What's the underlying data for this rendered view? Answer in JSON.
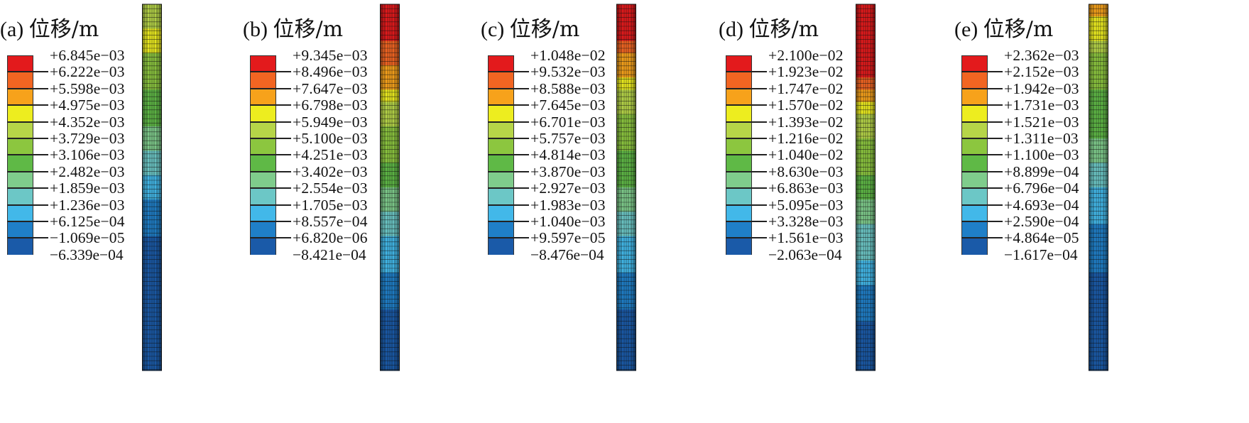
{
  "colors": [
    "#e31a1c",
    "#f26522",
    "#f7a21b",
    "#eded1f",
    "#b6d548",
    "#8cc63f",
    "#5fb946",
    "#7fcc8c",
    "#6cc7c6",
    "#42b8e9",
    "#1f7fc8",
    "#1a5aa8"
  ],
  "panels": [
    {
      "label": "(a)",
      "title_text": "位移",
      "unit": "/m",
      "legend": [
        "+6.845e−03",
        "+6.222e−03",
        "+5.598e−03",
        "+4.975e−03",
        "+4.352e−03",
        "+3.729e−03",
        "+3.106e−03",
        "+2.482e−03",
        "+1.859e−03",
        "+1.236e−03",
        "+6.125e−04",
        "−1.069e−05",
        "−6.339e−04"
      ],
      "pile_profile": [
        4,
        4,
        3,
        3,
        5,
        5,
        5,
        6,
        6,
        6,
        7,
        7,
        8,
        8,
        9,
        9,
        10,
        10,
        10,
        11,
        11,
        11,
        11,
        11,
        11,
        11,
        11,
        11,
        11,
        11
      ]
    },
    {
      "label": "(b)",
      "title_text": "位移",
      "unit": "/m",
      "legend": [
        "+9.345e−03",
        "+8.496e−03",
        "+7.647e−03",
        "+6.798e−03",
        "+5.949e−03",
        "+5.100e−03",
        "+4.251e−03",
        "+3.402e−03",
        "+2.554e−03",
        "+1.705e−03",
        "+8.557e−04",
        "+6.820e−06",
        "−8.421e−04"
      ],
      "pile_profile": [
        0,
        0,
        0,
        1,
        1,
        2,
        2,
        3,
        4,
        4,
        5,
        5,
        5,
        6,
        6,
        7,
        7,
        8,
        8,
        9,
        9,
        9,
        10,
        10,
        10,
        11,
        11,
        11,
        11,
        11
      ]
    },
    {
      "label": "(c)",
      "title_text": "位移",
      "unit": "/m",
      "legend": [
        "+1.048e−02",
        "+9.532e−03",
        "+8.588e−03",
        "+7.645e−03",
        "+6.701e−03",
        "+5.757e−03",
        "+4.814e−03",
        "+3.870e−03",
        "+2.927e−03",
        "+1.983e−03",
        "+1.040e−03",
        "+9.597e−05",
        "−8.476e−04"
      ],
      "pile_profile": [
        0,
        0,
        0,
        1,
        2,
        2,
        3,
        4,
        4,
        5,
        5,
        5,
        6,
        6,
        6,
        7,
        7,
        8,
        8,
        9,
        9,
        9,
        10,
        10,
        10,
        11,
        11,
        11,
        11,
        11
      ]
    },
    {
      "label": "(d)",
      "title_text": "位移",
      "unit": "/m",
      "legend": [
        "+2.100e−02",
        "+1.923e−02",
        "+1.747e−02",
        "+1.570e−02",
        "+1.393e−02",
        "+1.216e−02",
        "+1.040e−02",
        "+8.630e−03",
        "+6.863e−03",
        "+5.095e−03",
        "+3.328e−03",
        "+1.561e−03",
        "−2.063e−04"
      ],
      "pile_profile": [
        0,
        0,
        0,
        0,
        0,
        0,
        1,
        2,
        3,
        4,
        4,
        5,
        5,
        5,
        6,
        6,
        7,
        7,
        8,
        8,
        8,
        9,
        9,
        10,
        10,
        10,
        11,
        11,
        11,
        11
      ]
    },
    {
      "label": "(e)",
      "title_text": "位移",
      "unit": "/m",
      "legend": [
        "+2.362e−03",
        "+2.152e−03",
        "+1.942e−03",
        "+1.731e−03",
        "+1.521e−03",
        "+1.311e−03",
        "+1.100e−03",
        "+8.899e−04",
        "+6.796e−04",
        "+4.693e−04",
        "+2.590e−04",
        "+4.864e−05",
        "−1.617e−04"
      ],
      "pile_profile": [
        2,
        3,
        3,
        4,
        5,
        5,
        5,
        6,
        6,
        6,
        6,
        7,
        7,
        8,
        8,
        9,
        9,
        9,
        10,
        10,
        10,
        10,
        11,
        11,
        11,
        11,
        11,
        11,
        11,
        11
      ]
    }
  ]
}
